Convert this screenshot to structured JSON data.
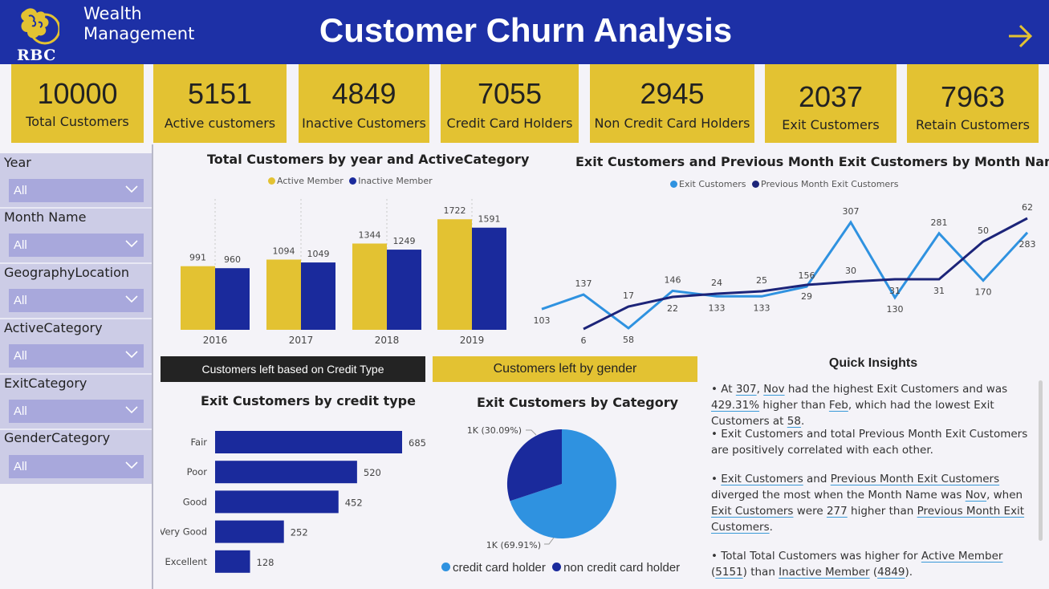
{
  "header": {
    "logo_text": "RBC",
    "brand_line1": "Wealth",
    "brand_line2": "Management",
    "title": "Customer Churn Analysis"
  },
  "kpis": [
    {
      "value": "10000",
      "label": "Total Customers"
    },
    {
      "value": "5151",
      "label": "Active customers"
    },
    {
      "value": "4849",
      "label": "Inactive Customers"
    },
    {
      "value": "7055",
      "label": "Credit Card Holders"
    },
    {
      "value": "2945",
      "label": "Non Credit Card Holders"
    },
    {
      "value": "2037",
      "label": "Exit Customers"
    },
    {
      "value": "7963",
      "label": "Retain Customers"
    }
  ],
  "slicers": [
    {
      "label": "Year",
      "value": "All"
    },
    {
      "label": "Month Name",
      "value": "All"
    },
    {
      "label": "GeographyLocation",
      "value": "All"
    },
    {
      "label": "ActiveCategory",
      "value": "All"
    },
    {
      "label": "ExitCategory",
      "value": "All"
    },
    {
      "label": "GenderCategory",
      "value": "All"
    }
  ],
  "colors": {
    "gold": "#e3c232",
    "navy": "#1a2a9c",
    "light_blue": "#2f92e0",
    "header_blue": "#1d30a6",
    "dark_line": "#1c2479"
  },
  "buttons": {
    "credit_type": "Customers left based on Credit Type",
    "gender": "Customers left by gender"
  },
  "chart_data": [
    {
      "type": "bar",
      "title": "Total Customers by year and ActiveCategory",
      "categories": [
        "2016",
        "2017",
        "2018",
        "2019"
      ],
      "series": [
        {
          "name": "Active Member",
          "values": [
            991,
            1094,
            1344,
            1722
          ]
        },
        {
          "name": "Inactive Member",
          "values": [
            960,
            1049,
            1249,
            1591
          ]
        }
      ],
      "legend": "top-center"
    },
    {
      "type": "line",
      "title": "Exit Customers and Previous Month Exit Customers by Month Name",
      "series": [
        {
          "name": "Exit Customers",
          "values": [
            103,
            137,
            58,
            146,
            133,
            133,
            156,
            307,
            130,
            281,
            170,
            283
          ]
        },
        {
          "name": "Previous Month Exit Customers",
          "values": [
            null,
            6,
            17,
            22,
            24,
            25,
            29,
            30,
            31,
            31,
            50,
            62
          ]
        }
      ],
      "legend": "top-center"
    },
    {
      "type": "bar",
      "orientation": "horizontal",
      "title": "Exit Customers by credit type",
      "categories": [
        "Fair",
        "Poor",
        "Good",
        "Very Good",
        "Excellent"
      ],
      "values": [
        685,
        520,
        452,
        252,
        128
      ]
    },
    {
      "type": "pie",
      "title": "Exit Customers by Category",
      "slices": [
        {
          "name": "credit card holder",
          "value": 69.91,
          "label": "1K (69.91%)"
        },
        {
          "name": "non credit card holder",
          "value": 30.09,
          "label": "1K (30.09%)"
        }
      ],
      "legend": "bottom"
    }
  ],
  "insights": {
    "title": "Quick Insights",
    "i1": {
      "p1": "• At ",
      "n1": "307",
      "p2": ", ",
      "n2": "Nov",
      "p3": " had the highest Exit Customers and was ",
      "n3": "429.31%",
      "p4": " higher than ",
      "n4": "Feb",
      "p5": ", which had the lowest Exit Customers at ",
      "n5": "58",
      "p6": "."
    },
    "i2": "• Exit Customers and total Previous Month Exit Customers are positively correlated with each other.",
    "i3": {
      "p1": "• ",
      "n1": "Exit Customers",
      "p2": " and ",
      "n2": "Previous Month Exit Customers",
      "p3": " diverged the most when the Month Name was ",
      "n3": "Nov",
      "p4": ", when ",
      "n4": "Exit Customers",
      "p5": " were ",
      "n5": "277",
      "p6": " higher than ",
      "n6": "Previous Month Exit Customers",
      "p7": "."
    },
    "i4": {
      "p1": "• Total Total Customers was higher for ",
      "n1": "Active Member",
      "p2": " (",
      "n2": "5151",
      "p3": ") than ",
      "n3": "Inactive Member",
      "p4": " (",
      "n4": "4849",
      "p5": ")."
    }
  }
}
